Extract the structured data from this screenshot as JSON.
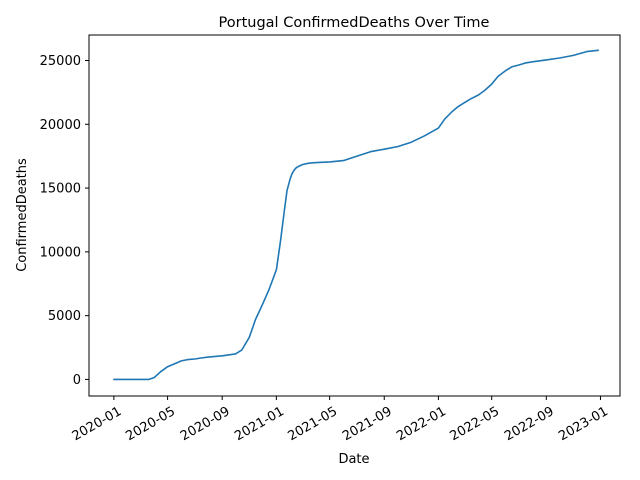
{
  "chart_data": {
    "type": "line",
    "title": "Portugal  ConfirmedDeaths Over Time",
    "xlabel": "Date",
    "ylabel": "ConfirmedDeaths",
    "xlim": [
      "2019-11-06",
      "2023-02-14"
    ],
    "ylim": [
      -1300,
      27000
    ],
    "grid": false,
    "line_color": "#1f77b4",
    "xticks": [
      "2020-01",
      "2020-05",
      "2020-09",
      "2021-01",
      "2021-05",
      "2021-09",
      "2022-01",
      "2022-05",
      "2022-09",
      "2023-01"
    ],
    "yticks": [
      0,
      5000,
      10000,
      15000,
      20000,
      25000
    ],
    "series": [
      {
        "x": [
          "2020-01-01",
          "2020-02-01",
          "2020-03-01",
          "2020-03-20",
          "2020-04-01",
          "2020-04-15",
          "2020-05-01",
          "2020-05-15",
          "2020-06-01",
          "2020-06-15",
          "2020-07-01",
          "2020-07-15",
          "2020-08-01",
          "2020-09-01",
          "2020-10-01",
          "2020-10-15",
          "2020-11-01",
          "2020-11-15",
          "2020-12-01",
          "2020-12-15",
          "2021-01-01",
          "2021-01-10",
          "2021-01-20",
          "2021-01-25",
          "2021-02-01",
          "2021-02-05",
          "2021-02-10",
          "2021-02-15",
          "2021-02-20",
          "2021-03-01",
          "2021-03-15",
          "2021-04-01",
          "2021-05-01",
          "2021-06-01",
          "2021-07-01",
          "2021-08-01",
          "2021-09-01",
          "2021-10-01",
          "2021-11-01",
          "2021-12-01",
          "2022-01-01",
          "2022-01-15",
          "2022-02-01",
          "2022-02-15",
          "2022-03-01",
          "2022-03-15",
          "2022-04-01",
          "2022-04-15",
          "2022-05-01",
          "2022-05-15",
          "2022-06-01",
          "2022-06-15",
          "2022-07-01",
          "2022-07-15",
          "2022-08-01",
          "2022-09-01",
          "2022-10-01",
          "2022-11-01",
          "2022-12-01",
          "2022-12-27"
        ],
        "y": [
          0,
          0,
          0,
          0,
          150,
          600,
          1000,
          1200,
          1450,
          1550,
          1600,
          1680,
          1750,
          1850,
          2000,
          2300,
          3300,
          4700,
          5900,
          7000,
          8600,
          10800,
          13500,
          14800,
          15700,
          16100,
          16400,
          16600,
          16700,
          16850,
          16950,
          17000,
          17050,
          17150,
          17500,
          17850,
          18050,
          18250,
          18600,
          19100,
          19700,
          20400,
          21000,
          21400,
          21700,
          22000,
          22300,
          22650,
          23150,
          23750,
          24200,
          24500,
          24650,
          24800,
          24900,
          25050,
          25200,
          25400,
          25700,
          25800
        ]
      }
    ]
  }
}
